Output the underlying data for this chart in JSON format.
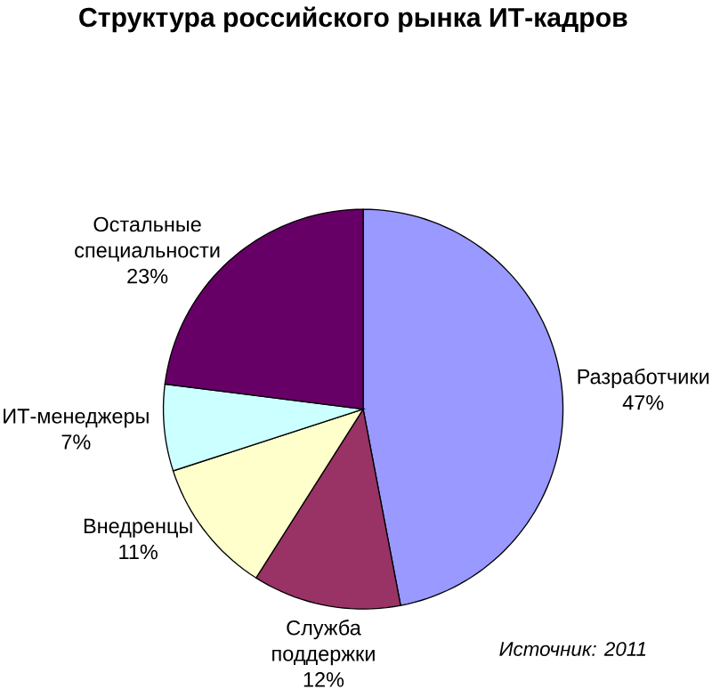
{
  "chart_data": {
    "type": "pie",
    "title": "Структура российского рынка ИТ-кадров",
    "categories": [
      "Разработчики",
      "Служба поддержки",
      "Внедренцы",
      "ИТ-менеджеры",
      "Остальные специальности"
    ],
    "values": [
      47,
      12,
      11,
      7,
      23
    ],
    "value_labels": [
      "47%",
      "12%",
      "11%",
      "7%",
      "23%"
    ],
    "colors": [
      "#9999ff",
      "#993366",
      "#ffffcc",
      "#ccffff",
      "#660066"
    ],
    "annotations": [
      "Источник: 2011"
    ]
  }
}
